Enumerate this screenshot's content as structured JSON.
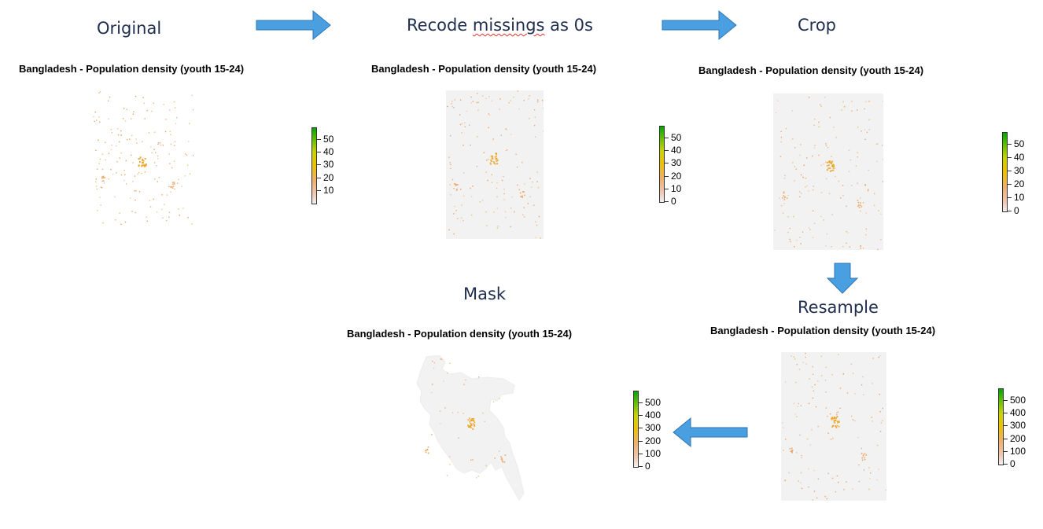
{
  "steps": {
    "original": "Original",
    "recode": "Recode missings as 0s",
    "recode_pre": "Recode ",
    "recode_squiggle": "missings",
    "recode_post": " as 0s",
    "crop": "Crop",
    "resample": "Resample",
    "mask": "Mask"
  },
  "plot_title": "Bangladesh - Population density (youth 15-24)",
  "legends": {
    "original": [
      "50",
      "40",
      "30",
      "20",
      "10"
    ],
    "recode": [
      "50",
      "40",
      "30",
      "20",
      "10",
      "0"
    ],
    "crop": [
      "50",
      "40",
      "30",
      "20",
      "10",
      "0"
    ],
    "resample": [
      "500",
      "400",
      "300",
      "200",
      "100",
      "0"
    ],
    "mask": [
      "500",
      "400",
      "300",
      "200",
      "100",
      "0"
    ]
  },
  "colors": {
    "arrow_fill": "#4a9fe0",
    "arrow_stroke": "#2e75b6",
    "raster_background": "#f2f2f2",
    "step_label": "#1f2d4e"
  },
  "icons": {
    "arrow_right": "arrow-right-icon",
    "arrow_down": "arrow-down-icon",
    "arrow_left": "arrow-left-icon"
  }
}
